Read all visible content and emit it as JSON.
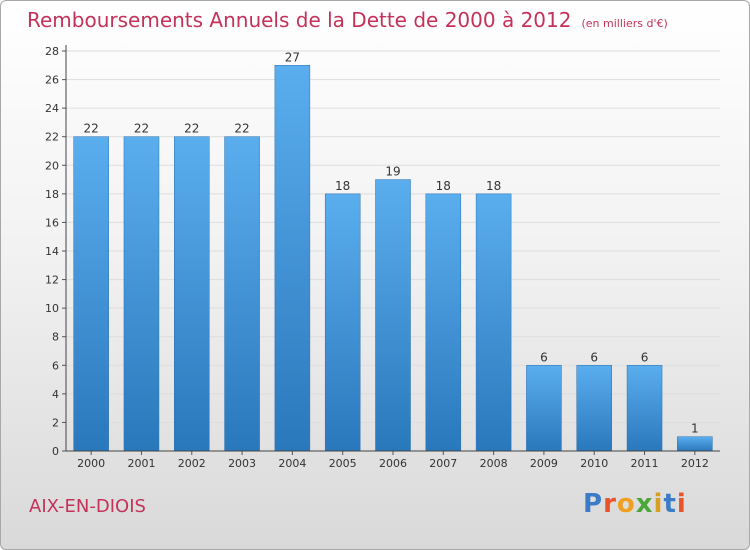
{
  "chart_data": {
    "type": "bar",
    "title": "Remboursements Annuels de la Dette de 2000 à 2012",
    "subtitle": "(en milliers d'€)",
    "categories": [
      "2000",
      "2001",
      "2002",
      "2003",
      "2004",
      "2005",
      "2006",
      "2007",
      "2008",
      "2009",
      "2010",
      "2011",
      "2012"
    ],
    "values": [
      22,
      22,
      22,
      22,
      27,
      18,
      19,
      18,
      18,
      6,
      6,
      6,
      1
    ],
    "yticks": [
      0,
      2,
      4,
      6,
      8,
      10,
      12,
      14,
      16,
      18,
      20,
      22,
      24,
      26,
      28
    ],
    "ylim": [
      0,
      28
    ],
    "xlabel": "",
    "ylabel": "",
    "bar_color": "#3d8fd6"
  },
  "footer": {
    "commune": "AIX-EN-DIOIS",
    "logo": [
      "P",
      "r",
      "o",
      "x",
      "i",
      "t",
      "i"
    ],
    "logo_colors": [
      "#3a7cc8",
      "#e8542a",
      "#f0a020",
      "#4aa83a",
      "#d8a020",
      "#3a7cc8",
      "#e8542a"
    ]
  }
}
